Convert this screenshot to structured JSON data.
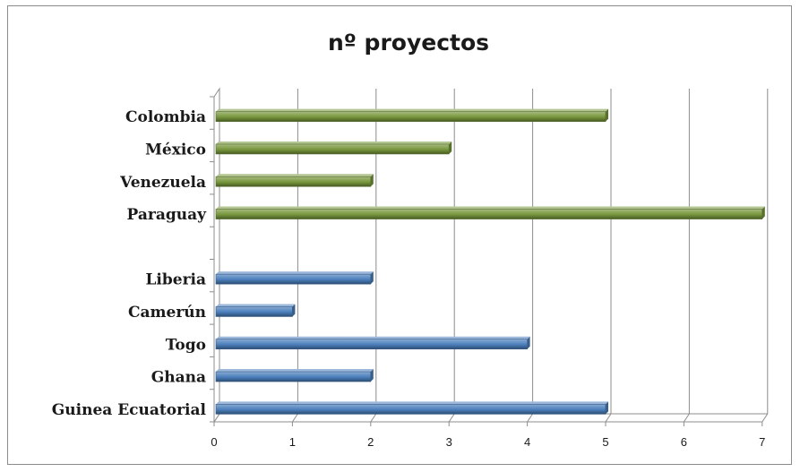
{
  "chart_data": {
    "type": "bar",
    "orientation": "horizontal",
    "title": "nº proyectos",
    "xlabel": "",
    "ylabel": "",
    "xlim": [
      0,
      7
    ],
    "x_ticks": [
      "0",
      "1",
      "2",
      "3",
      "4",
      "5",
      "6",
      "7"
    ],
    "grid": true,
    "legend": "none",
    "categories": [
      "Colombia",
      "México",
      "Venezuela",
      "Paraguay",
      "",
      "Liberia",
      "Camerún",
      "Togo",
      "Ghana",
      "Guinea Ecuatorial"
    ],
    "values": [
      5,
      3,
      2,
      7,
      null,
      2,
      1,
      4,
      2,
      5
    ],
    "groups": [
      {
        "color": "#77963c",
        "categories": [
          "Colombia",
          "México",
          "Venezuela",
          "Paraguay"
        ]
      },
      {
        "color": "#4a7ebb",
        "categories": [
          "Liberia",
          "Camerún",
          "Togo",
          "Ghana",
          "Guinea Ecuatorial"
        ]
      }
    ]
  }
}
